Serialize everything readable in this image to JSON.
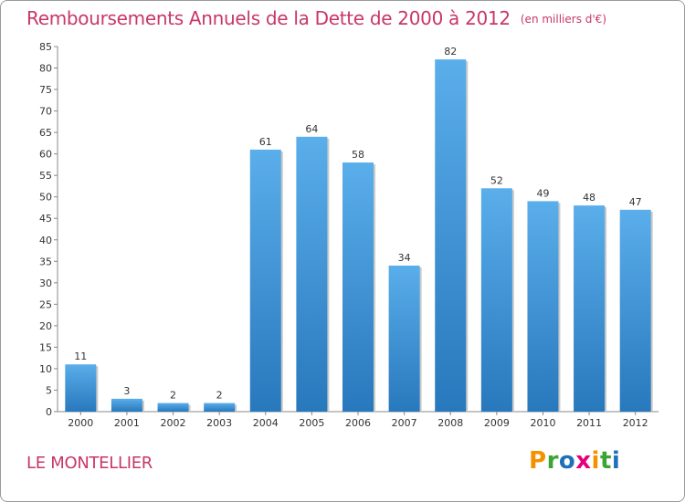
{
  "title": "Remboursements Annuels de la Dette de 2000 à 2012",
  "subtitle": "(en milliers d'€)",
  "place": "LE MONTELLIER",
  "brand": {
    "letters": [
      "P",
      "r",
      "o",
      "x",
      "i",
      "t",
      "i"
    ],
    "colors": [
      "#f39200",
      "#3aa535",
      "#1d71b8",
      "#e6007e",
      "#f39200",
      "#3aa535",
      "#1d71b8"
    ]
  },
  "colors": {
    "title": "#c8366a",
    "bar_top": "#5aaeea",
    "bar_bottom": "#2878bd",
    "axis_text": "#333333"
  },
  "chart_data": {
    "type": "bar",
    "categories": [
      "2000",
      "2001",
      "2002",
      "2003",
      "2004",
      "2005",
      "2006",
      "2007",
      "2008",
      "2009",
      "2010",
      "2011",
      "2012"
    ],
    "values": [
      11,
      3,
      2,
      2,
      61,
      64,
      58,
      34,
      82,
      52,
      49,
      48,
      47
    ],
    "data_labels": [
      "11",
      "3",
      "2",
      "2",
      "61",
      "64",
      "58",
      "34",
      "82",
      "52",
      "49",
      "48",
      "47"
    ],
    "ylim": [
      0,
      85
    ],
    "yticks": [
      "0",
      "5",
      "10",
      "15",
      "20",
      "25",
      "30",
      "35",
      "40",
      "45",
      "50",
      "55",
      "60",
      "65",
      "70",
      "75",
      "80",
      "85"
    ],
    "grid": false
  }
}
